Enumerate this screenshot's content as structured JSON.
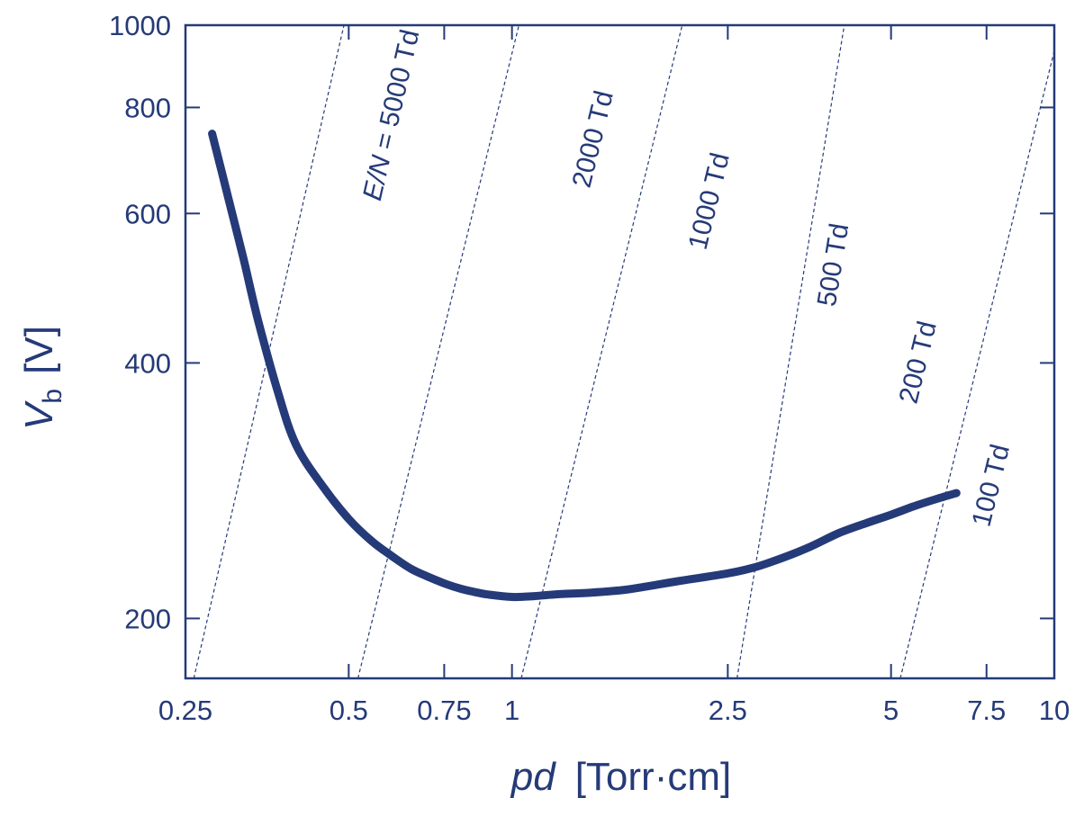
{
  "chart_data": {
    "type": "line",
    "xscale": "log",
    "yscale": "log",
    "xlim": [
      0.25,
      10
    ],
    "ylim": [
      170,
      1000
    ],
    "xticks": [
      {
        "value": 0.25,
        "label": "0.25"
      },
      {
        "value": 0.5,
        "label": "0.5"
      },
      {
        "value": 0.75,
        "label": "0.75"
      },
      {
        "value": 1,
        "label": "1"
      },
      {
        "value": 2.5,
        "label": "2.5"
      },
      {
        "value": 5,
        "label": "5"
      },
      {
        "value": 7.5,
        "label": "7.5"
      },
      {
        "value": 10,
        "label": "10"
      }
    ],
    "yticks": [
      {
        "value": 200,
        "label": "200"
      },
      {
        "value": 400,
        "label": "400"
      },
      {
        "value": 600,
        "label": "600"
      },
      {
        "value": 800,
        "label": "800"
      },
      {
        "value": 1000,
        "label": "1000"
      }
    ],
    "xlabel": {
      "italic": "pd",
      "rest": "[Torr·cm]"
    },
    "ylabel": {
      "main": "V",
      "sub": "b",
      "rest": "[V]"
    },
    "series": [
      {
        "color": "#253a78",
        "points": [
          [
            0.28,
            745
          ],
          [
            0.3,
            625
          ],
          [
            0.32,
            530
          ],
          [
            0.34,
            450
          ],
          [
            0.37,
            370
          ],
          [
            0.4,
            320
          ],
          [
            0.45,
            285
          ],
          [
            0.5,
            262
          ],
          [
            0.55,
            247
          ],
          [
            0.6,
            237
          ],
          [
            0.65,
            229
          ],
          [
            0.7,
            224
          ],
          [
            0.75,
            220
          ],
          [
            0.8,
            217
          ],
          [
            0.85,
            215
          ],
          [
            0.9,
            213.5
          ],
          [
            1.0,
            212
          ],
          [
            1.1,
            212.5
          ],
          [
            1.2,
            213.5
          ],
          [
            1.4,
            214.5
          ],
          [
            1.6,
            216
          ],
          [
            1.8,
            218.5
          ],
          [
            2.0,
            221
          ],
          [
            2.5,
            226
          ],
          [
            2.75,
            229
          ],
          [
            3.0,
            233
          ],
          [
            3.5,
            242
          ],
          [
            4.0,
            252
          ],
          [
            4.5,
            259
          ],
          [
            5.0,
            265
          ],
          [
            5.5,
            271
          ],
          [
            6.0,
            276
          ],
          [
            6.6,
            281
          ]
        ]
      }
    ],
    "reference_lines": [
      {
        "label": "E/N = 5000 Td",
        "italic_part": "E/N",
        "x_at_bottom": 0.259,
        "x_at_top": 0.49
      },
      {
        "label": "2000 Td",
        "x_at_bottom": 0.52,
        "x_at_top": 1.03
      },
      {
        "label": "1000 Td",
        "x_at_bottom": 1.04,
        "x_at_top": 2.06
      },
      {
        "label": "500 Td",
        "x_at_bottom": 2.6,
        "x_at_top": 4.1
      },
      {
        "label": "200 Td",
        "x_at_bottom": 5.2,
        "x_at_top": 10.27
      },
      {
        "label": "100 Td",
        "x_at_bottom": 10.0,
        "x_at_top": 20.0
      }
    ],
    "colors": {
      "axis": "#253a78",
      "series": "#253a78",
      "reference": "#253a78"
    }
  }
}
